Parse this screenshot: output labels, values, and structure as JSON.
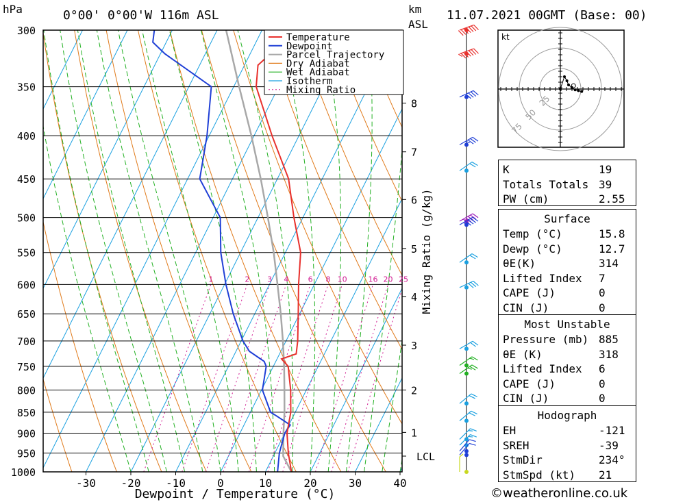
{
  "header": {
    "hpa_label": "hPa",
    "location": "0°00' 0°00'W 116m ASL",
    "km_label": "km",
    "asl_label": "ASL",
    "datetime": "11.07.2021 00GMT (Base: 00)"
  },
  "colors": {
    "temperature": "#e8302c",
    "dewpoint": "#1f3fd6",
    "parcel": "#a8a8a8",
    "dry_adiabat": "#e07a1a",
    "wet_adiabat": "#22b022",
    "isotherm": "#1aa0e0",
    "mixing_ratio": "#d01890"
  },
  "chart_data": {
    "type": "line",
    "title": "",
    "xlabel": "Dewpoint / Temperature (°C)",
    "ylabel": "",
    "mixing_ratio_axis_label": "Mixing Ratio (g/kg)",
    "xlim": [
      -40,
      40
    ],
    "ylim": [
      1000,
      300
    ],
    "x_ticks": [
      "-30",
      "-20",
      "-10",
      "0",
      "10",
      "20",
      "30",
      "40"
    ],
    "pressure_ticks": [
      "300",
      "350",
      "400",
      "450",
      "500",
      "550",
      "600",
      "650",
      "700",
      "750",
      "800",
      "850",
      "900",
      "950",
      "1000"
    ],
    "height_ticks": [
      {
        "label": "8",
        "p": 366
      },
      {
        "label": "7",
        "p": 418
      },
      {
        "label": "6",
        "p": 476
      },
      {
        "label": "5",
        "p": 544
      },
      {
        "label": "4",
        "p": 620
      },
      {
        "label": "3",
        "p": 708
      },
      {
        "label": "2",
        "p": 800
      },
      {
        "label": "1",
        "p": 898
      },
      {
        "label": "LCL",
        "p": 958
      }
    ],
    "mixing_ratio_labels": [
      "1",
      "2",
      "3",
      "4",
      "6",
      "8",
      "10",
      "16",
      "20",
      "25"
    ],
    "legend": [
      "Temperature",
      "Dewpoint",
      "Parcel Trajectory",
      "Dry Adiabat",
      "Wet Adiabat",
      "Isotherm",
      "Mixing Ratio"
    ],
    "legend_position": "top-right",
    "series": [
      {
        "name": "Temperature",
        "points": [
          [
            1000,
            15.8
          ],
          [
            950,
            13
          ],
          [
            900,
            10.5
          ],
          [
            850,
            9
          ],
          [
            800,
            6.5
          ],
          [
            750,
            3.3
          ],
          [
            735,
            1.0
          ],
          [
            725,
            3.7
          ],
          [
            700,
            2.6
          ],
          [
            650,
            -0.3
          ],
          [
            600,
            -3.5
          ],
          [
            550,
            -6.6
          ],
          [
            500,
            -12
          ],
          [
            450,
            -17.5
          ],
          [
            400,
            -26
          ],
          [
            350,
            -35
          ],
          [
            330,
            -37
          ],
          [
            320,
            -35.5
          ],
          [
            300,
            -38.5
          ]
        ]
      },
      {
        "name": "Dewpoint",
        "points": [
          [
            1000,
            12.7
          ],
          [
            950,
            11
          ],
          [
            900,
            10
          ],
          [
            880,
            10.3
          ],
          [
            860,
            6.5
          ],
          [
            850,
            4.5
          ],
          [
            800,
            0.2
          ],
          [
            750,
            -1.6
          ],
          [
            740,
            -2.6
          ],
          [
            720,
            -7
          ],
          [
            700,
            -9.6
          ],
          [
            650,
            -14.8
          ],
          [
            600,
            -19.7
          ],
          [
            550,
            -24.4
          ],
          [
            500,
            -28.4
          ],
          [
            450,
            -37.3
          ],
          [
            400,
            -40.5
          ],
          [
            350,
            -45
          ],
          [
            320,
            -59
          ],
          [
            310,
            -63
          ],
          [
            300,
            -64
          ]
        ]
      },
      {
        "name": "Parcel Trajectory",
        "points": [
          [
            1000,
            15.8
          ],
          [
            958,
            12.2
          ],
          [
            900,
            9.7
          ],
          [
            850,
            7.6
          ],
          [
            800,
            5.1
          ],
          [
            750,
            2.4
          ],
          [
            700,
            -0.7
          ],
          [
            650,
            -4.2
          ],
          [
            600,
            -8.2
          ],
          [
            550,
            -12.6
          ],
          [
            500,
            -17.8
          ],
          [
            450,
            -23.7
          ],
          [
            400,
            -30.6
          ],
          [
            350,
            -38.8
          ],
          [
            300,
            -48
          ]
        ]
      }
    ],
    "winds": [
      {
        "p": 300,
        "dir": 250,
        "kt": 70,
        "color": "#e8302c"
      },
      {
        "p": 320,
        "dir": 250,
        "kt": 65,
        "color": "#e8302c"
      },
      {
        "p": 360,
        "dir": 245,
        "kt": 40,
        "color": "#1f3fd6"
      },
      {
        "p": 410,
        "dir": 240,
        "kt": 35,
        "color": "#1f3fd6"
      },
      {
        "p": 440,
        "dir": 235,
        "kt": 20,
        "color": "#1aa0e0"
      },
      {
        "p": 505,
        "dir": 240,
        "kt": 50,
        "color": "#9a1ab8"
      },
      {
        "p": 510,
        "dir": 240,
        "kt": 45,
        "color": "#1f3fd6"
      },
      {
        "p": 565,
        "dir": 235,
        "kt": 20,
        "color": "#1aa0e0"
      },
      {
        "p": 605,
        "dir": 245,
        "kt": 30,
        "color": "#1aa0e0"
      },
      {
        "p": 715,
        "dir": 240,
        "kt": 20,
        "color": "#1aa0e0"
      },
      {
        "p": 748,
        "dir": 235,
        "kt": 15,
        "color": "#22b022"
      },
      {
        "p": 765,
        "dir": 235,
        "kt": 25,
        "color": "#22b022"
      },
      {
        "p": 830,
        "dir": 230,
        "kt": 20,
        "color": "#1aa0e0"
      },
      {
        "p": 870,
        "dir": 230,
        "kt": 20,
        "color": "#1aa0e0"
      },
      {
        "p": 915,
        "dir": 225,
        "kt": 15,
        "color": "#1aa0e0"
      },
      {
        "p": 930,
        "dir": 225,
        "kt": 15,
        "color": "#1aa0e0"
      },
      {
        "p": 945,
        "dir": 220,
        "kt": 10,
        "color": "#1f3fd6"
      },
      {
        "p": 955,
        "dir": 220,
        "kt": 10,
        "color": "#1f3fd6"
      },
      {
        "p": 1000,
        "dir": 180,
        "kt": 5,
        "color": "#c8d820"
      }
    ],
    "hodograph": {
      "unit_label": "kt",
      "ring_labels": [
        "25",
        "50",
        "75"
      ],
      "points": [
        [
          5,
          15
        ],
        [
          8,
          10
        ],
        [
          10,
          5
        ],
        [
          14,
          2
        ],
        [
          18,
          -1
        ],
        [
          22,
          -2
        ],
        [
          26,
          -3
        ]
      ]
    }
  },
  "indices": {
    "general": [
      {
        "key": "K",
        "value": "19"
      },
      {
        "key": "Totals Totals",
        "value": "39"
      },
      {
        "key": "PW (cm)",
        "value": "2.55"
      }
    ],
    "surface_title": "Surface",
    "surface": [
      {
        "key": "Temp (°C)",
        "value": "15.8"
      },
      {
        "key": "Dewp (°C)",
        "value": "12.7"
      },
      {
        "key": "θE(K)",
        "value": "314"
      },
      {
        "key": "Lifted Index",
        "value": "7"
      },
      {
        "key": "CAPE (J)",
        "value": "0"
      },
      {
        "key": "CIN (J)",
        "value": "0"
      }
    ],
    "unstable_title": "Most Unstable",
    "unstable": [
      {
        "key": "Pressure (mb)",
        "value": "885"
      },
      {
        "key": "θE (K)",
        "value": "318"
      },
      {
        "key": "Lifted Index",
        "value": "6"
      },
      {
        "key": "CAPE (J)",
        "value": "0"
      },
      {
        "key": "CIN (J)",
        "value": "0"
      }
    ],
    "hodograph_title": "Hodograph",
    "hodograph": [
      {
        "key": "EH",
        "value": "-121"
      },
      {
        "key": "SREH",
        "value": "-39"
      },
      {
        "key": "StmDir",
        "value": "234°"
      },
      {
        "key": "StmSpd (kt)",
        "value": "21"
      }
    ]
  },
  "footer": "©weatheronline.co.uk"
}
